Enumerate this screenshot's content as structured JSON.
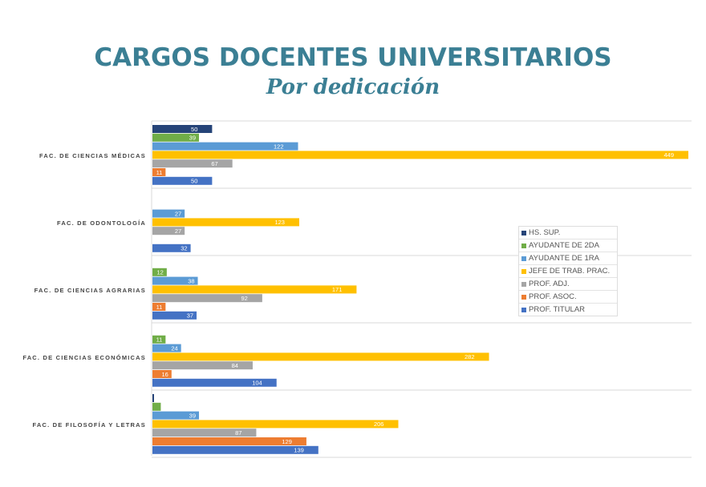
{
  "title": "CARGOS DOCENTES UNIVERSITARIOS",
  "subtitle": "Por dedicación",
  "chart_data": {
    "type": "bar",
    "orientation": "horizontal",
    "title": "CARGOS DOCENTES UNIVERSITARIOS",
    "subtitle": "Por dedicación",
    "categories": [
      "FAC. DE CIENCIAS MÉDICAS",
      "FAC. DE ODONTOLOGÍA",
      "FAC. DE CIENCIAS AGRARIAS",
      "FAC. DE CIENCIAS ECONÓMICAS",
      "FAC. DE FILOSOFÍA Y LETRAS"
    ],
    "series": [
      {
        "name": "HS. SUP.",
        "color": "#264478",
        "values": [
          50,
          null,
          null,
          null,
          1
        ]
      },
      {
        "name": "AYUDANTE DE 2DA",
        "color": "#70ad47",
        "values": [
          39,
          null,
          12,
          11,
          7
        ]
      },
      {
        "name": "AYUDANTE DE 1RA",
        "color": "#5b9bd5",
        "values": [
          122,
          27,
          38,
          24,
          39
        ]
      },
      {
        "name": "JEFE DE TRAB. PRAC.",
        "color": "#ffc000",
        "values": [
          449,
          123,
          171,
          282,
          206
        ]
      },
      {
        "name": "PROF. ADJ.",
        "color": "#a5a5a5",
        "values": [
          67,
          27,
          92,
          84,
          87
        ]
      },
      {
        "name": "PROF. ASOC.",
        "color": "#ed7d31",
        "values": [
          11,
          null,
          11,
          16,
          129
        ]
      },
      {
        "name": "PROF. TITULAR",
        "color": "#4472c4",
        "values": [
          50,
          32,
          37,
          104,
          139
        ]
      }
    ],
    "xlim": [
      0,
      449
    ],
    "grid": "category separators",
    "legend": "right",
    "data_labels": true
  }
}
